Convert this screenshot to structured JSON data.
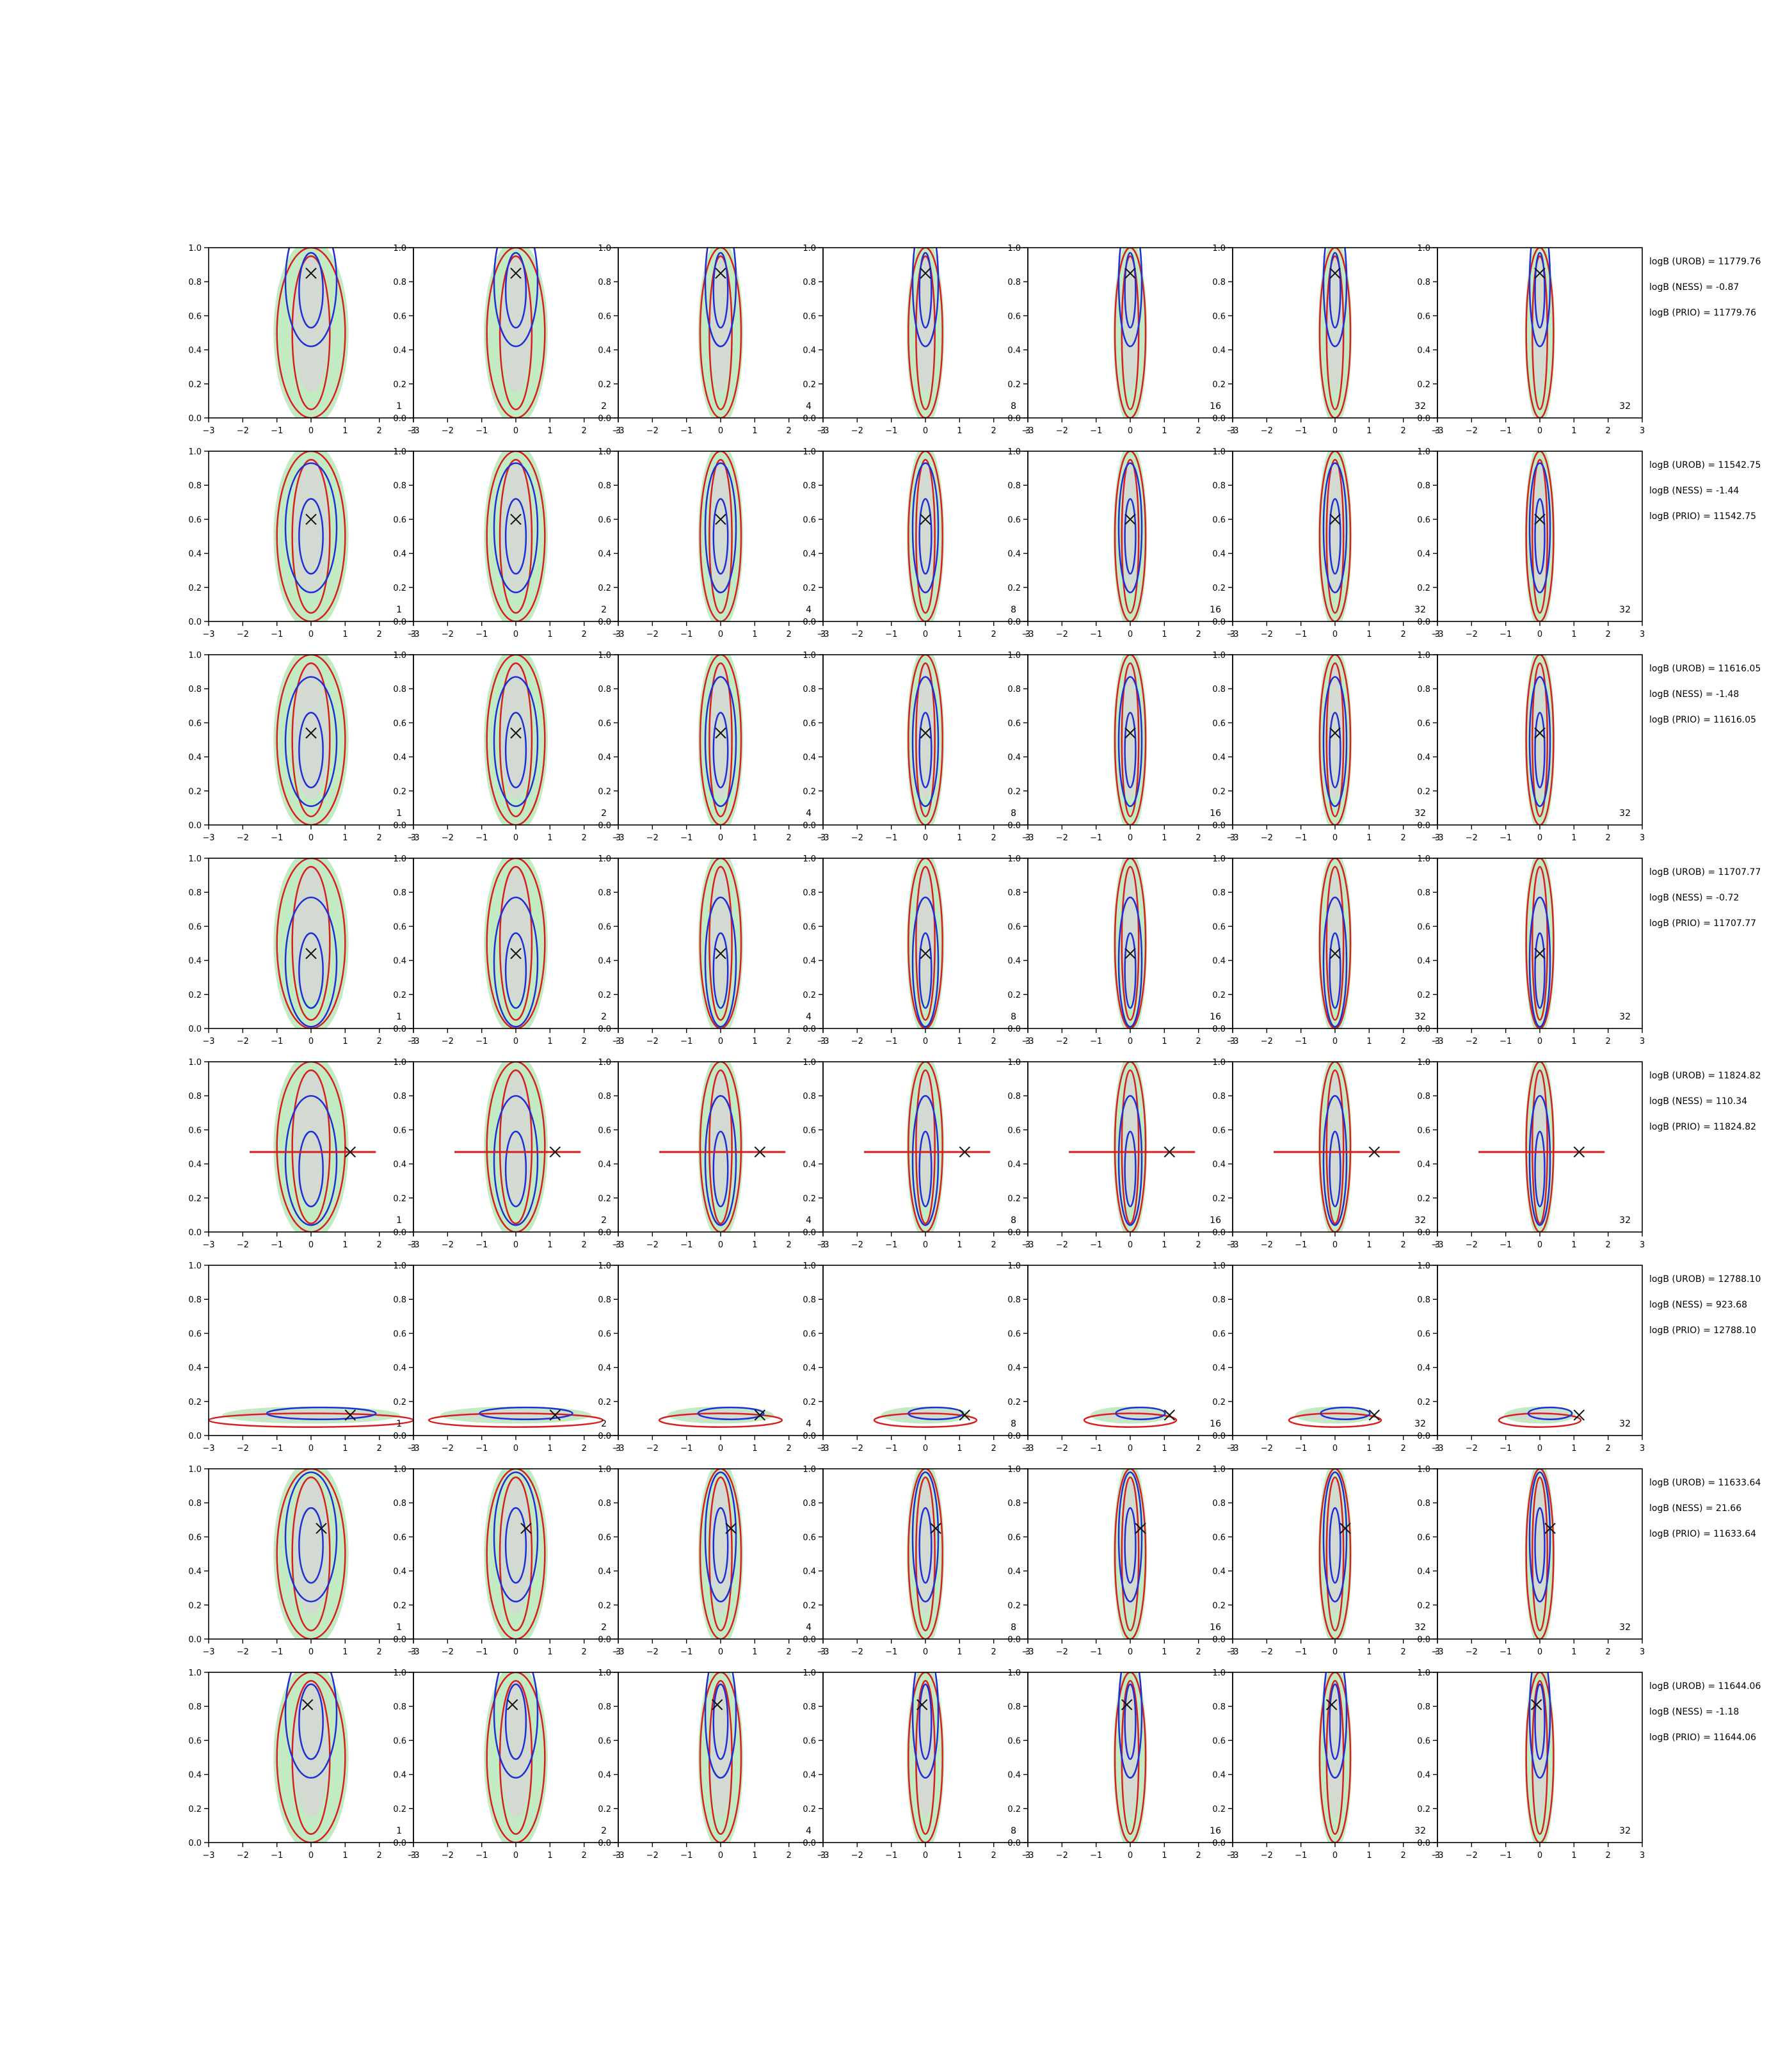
{
  "chart_data": {
    "type": "contour-grid",
    "rows": 8,
    "columns": 7,
    "xlim": [
      -3,
      3
    ],
    "ylim": [
      0,
      1
    ],
    "x_ticks": [
      "−3",
      "−2",
      "−1",
      "0",
      "1",
      "2",
      "3"
    ],
    "y_ticks": [
      "0.0",
      "0.2",
      "0.4",
      "0.6",
      "0.8",
      "1.0"
    ],
    "panel_labels": [
      "1",
      "2",
      "4",
      "8",
      "16",
      "32",
      "32"
    ],
    "colors": {
      "red": "#d62020",
      "blue": "#1f2fd6",
      "green_fill": "#bde9bd",
      "grey_fill": "#d6d6d6",
      "marker": "#111111"
    },
    "row_markers": [
      {
        "x": 0.0,
        "y": 0.85
      },
      {
        "x": 0.0,
        "y": 0.6
      },
      {
        "x": 0.0,
        "y": 0.54
      },
      {
        "x": 0.0,
        "y": 0.44
      },
      {
        "x": 1.15,
        "y": 0.47
      },
      {
        "x": 1.15,
        "y": 0.12
      },
      {
        "x": 0.3,
        "y": 0.65
      },
      {
        "x": -0.1,
        "y": 0.81
      }
    ],
    "row_stats": [
      [
        "logB (UROB) = 11779.76",
        "logB (NESS) = -0.87",
        "logB (PRIO) = 11779.76"
      ],
      [
        "logB (UROB) = 11542.75",
        "logB (NESS) = -1.44",
        "logB (PRIO) = 11542.75"
      ],
      [
        "logB (UROB) = 11616.05",
        "logB (NESS) = -1.48",
        "logB (PRIO) = 11616.05"
      ],
      [
        "logB (UROB) = 11707.77",
        "logB (NESS) = -0.72",
        "logB (PRIO) = 11707.77"
      ],
      [
        "logB (UROB) = 11824.82",
        "logB (NESS) = 110.34",
        "logB (PRIO) = 11824.82"
      ],
      [
        "logB (UROB) = 12788.10",
        "logB (NESS) = 923.68",
        "logB (PRIO) = 12788.10"
      ],
      [
        "logB (UROB) = 11633.64",
        "logB (NESS) = 21.66",
        "logB (PRIO) = 11633.64"
      ],
      [
        "logB (UROB) = 11644.06",
        "logB (NESS) = -1.18",
        "logB (PRIO) = 11644.06"
      ]
    ]
  }
}
